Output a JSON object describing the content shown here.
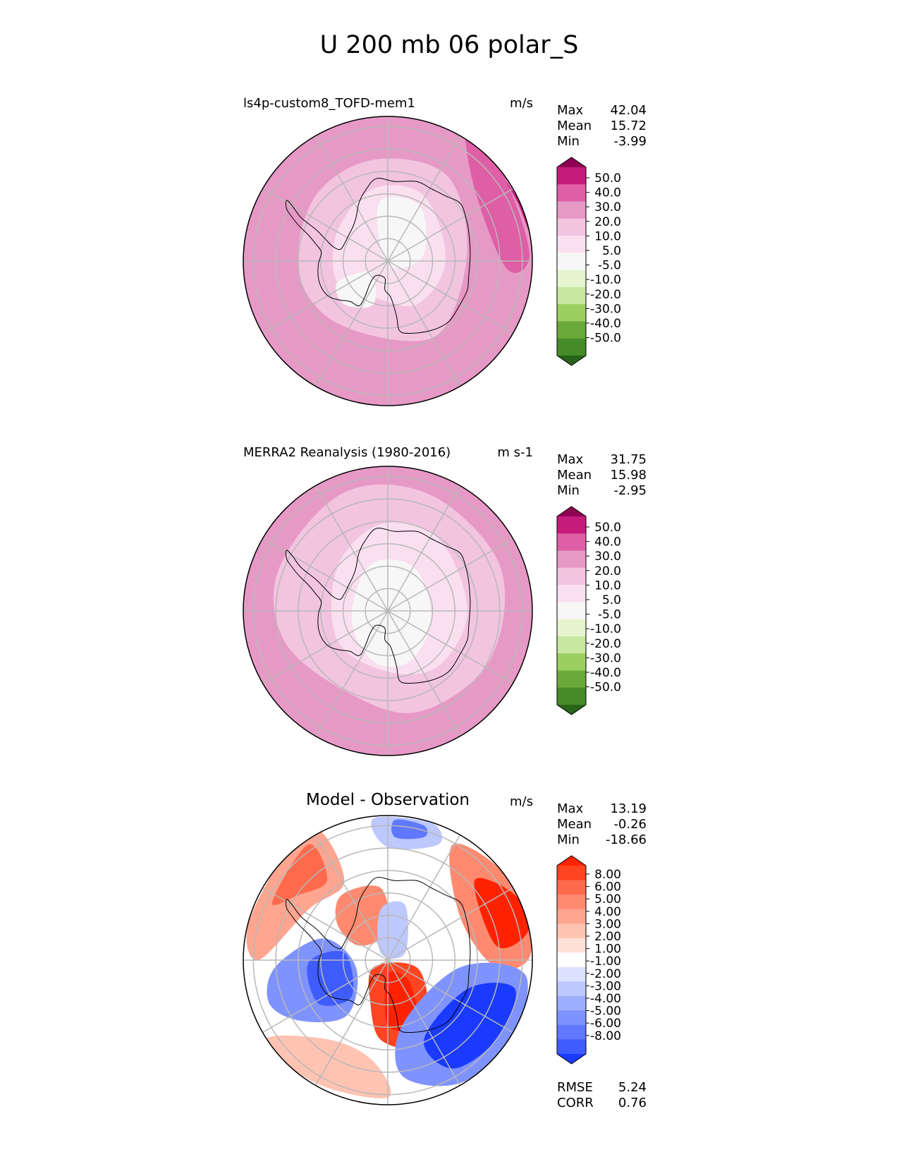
{
  "title": "U 200 mb 06 polar_S",
  "chart_data": [
    {
      "type": "heatmap",
      "projection": "south-polar-stereographic",
      "title": "ls4p-custom8_TOFD-mem1",
      "units": "m/s",
      "stats": {
        "max_label": "Max",
        "max": "42.04",
        "mean_label": "Mean",
        "mean": "15.72",
        "min_label": "Min",
        "min": "-3.99"
      },
      "levels": [
        "50.0",
        "40.0",
        "30.0",
        "20.0",
        "10.0",
        "5.0",
        "-5.0",
        "-10.0",
        "-20.0",
        "-30.0",
        "-40.0",
        "-50.0"
      ],
      "colors": [
        "#8e0152",
        "#c51b7d",
        "#de5fa6",
        "#e799c6",
        "#f2c4e0",
        "#fae0ef",
        "#f7f7f7",
        "#e6f5d0",
        "#c7e8a0",
        "#9bcf60",
        "#6aa937",
        "#458c28",
        "#276419"
      ],
      "background": "#e799c6",
      "fields": [
        {
          "color": "#f2c4e0",
          "points": [
            [
              -0.5,
              0.45
            ],
            [
              -0.1,
              0.7
            ],
            [
              0.4,
              0.6
            ],
            [
              0.55,
              0.1
            ],
            [
              0.4,
              -0.45
            ],
            [
              0.1,
              -0.55
            ],
            [
              -0.4,
              -0.4
            ],
            [
              -0.62,
              -0.05
            ]
          ]
        },
        {
          "color": "#fae0ef",
          "points": [
            [
              -0.35,
              0.2
            ],
            [
              -0.1,
              0.5
            ],
            [
              0.25,
              0.45
            ],
            [
              0.4,
              0.0
            ],
            [
              0.2,
              -0.3
            ],
            [
              -0.1,
              -0.25
            ],
            [
              -0.35,
              -0.15
            ]
          ]
        },
        {
          "color": "#f7f7f7",
          "points": [
            [
              -0.05,
              0.42
            ],
            [
              0.22,
              0.38
            ],
            [
              0.25,
              0.05
            ],
            [
              0.05,
              -0.05
            ],
            [
              -0.05,
              0.1
            ]
          ]
        },
        {
          "color": "#f7f7f7",
          "points": [
            [
              -0.35,
              -0.15
            ],
            [
              -0.12,
              -0.08
            ],
            [
              -0.1,
              -0.3
            ],
            [
              -0.3,
              -0.3
            ]
          ]
        },
        {
          "color": "#de5fa6",
          "points": [
            [
              0.55,
              0.92
            ],
            [
              0.8,
              0.6
            ],
            [
              0.98,
              0.05
            ],
            [
              0.82,
              -0.05
            ],
            [
              0.6,
              0.5
            ]
          ]
        },
        {
          "color": "#c51b7d",
          "points": [
            [
              0.82,
              0.55
            ],
            [
              0.95,
              0.35
            ],
            [
              0.98,
              0.2
            ],
            [
              0.9,
              0.4
            ]
          ]
        }
      ]
    },
    {
      "type": "heatmap",
      "projection": "south-polar-stereographic",
      "title": "MERRA2 Reanalysis (1980-2016)",
      "units": "m s-1",
      "stats": {
        "max_label": "Max",
        "max": "31.75",
        "mean_label": "Mean",
        "mean": "15.98",
        "min_label": "Min",
        "min": "-2.95"
      },
      "levels": [
        "50.0",
        "40.0",
        "30.0",
        "20.0",
        "10.0",
        "5.0",
        "-5.0",
        "-10.0",
        "-20.0",
        "-30.0",
        "-40.0",
        "-50.0"
      ],
      "colors": [
        "#8e0152",
        "#c51b7d",
        "#de5fa6",
        "#e799c6",
        "#f2c4e0",
        "#fae0ef",
        "#f7f7f7",
        "#e6f5d0",
        "#c7e8a0",
        "#9bcf60",
        "#6aa937",
        "#458c28",
        "#276419"
      ],
      "background": "#e799c6",
      "fields": [
        {
          "color": "#f2c4e0",
          "points": [
            [
              -0.75,
              0.3
            ],
            [
              -0.3,
              0.82
            ],
            [
              0.3,
              0.8
            ],
            [
              0.78,
              0.3
            ],
            [
              0.7,
              -0.35
            ],
            [
              0.2,
              -0.7
            ],
            [
              -0.3,
              -0.55
            ],
            [
              -0.72,
              -0.2
            ]
          ]
        },
        {
          "color": "#fae0ef",
          "points": [
            [
              -0.35,
              0.3
            ],
            [
              -0.05,
              0.6
            ],
            [
              0.35,
              0.5
            ],
            [
              0.55,
              0.0
            ],
            [
              0.35,
              -0.38
            ],
            [
              0.0,
              -0.42
            ],
            [
              -0.35,
              -0.2
            ]
          ]
        },
        {
          "color": "#f7f7f7",
          "points": [
            [
              -0.12,
              0.32
            ],
            [
              0.18,
              0.3
            ],
            [
              0.3,
              -0.05
            ],
            [
              0.15,
              -0.35
            ],
            [
              -0.1,
              -0.35
            ],
            [
              -0.25,
              -0.05
            ]
          ]
        }
      ]
    },
    {
      "type": "heatmap",
      "projection": "south-polar-stereographic",
      "title": "Model - Observation",
      "units": "m/s",
      "stats": {
        "max_label": "Max",
        "max": "13.19",
        "mean_label": "Mean",
        "mean": "-0.26",
        "min_label": "Min",
        "min": "-18.66"
      },
      "levels": [
        "8.00",
        "6.00",
        "5.00",
        "4.00",
        "3.00",
        "2.00",
        "1.00",
        "-1.00",
        "-2.00",
        "-3.00",
        "-4.00",
        "-5.00",
        "-6.00",
        "-8.00"
      ],
      "colors": [
        "#ff2200",
        "#ff4422",
        "#ff6a4d",
        "#ff8a70",
        "#ffa590",
        "#ffc3b2",
        "#ffe0d6",
        "#ffffff",
        "#dce2ff",
        "#bdc8ff",
        "#9eaeff",
        "#7f93ff",
        "#5f78ff",
        "#3f5cff",
        "#1a3aff"
      ],
      "background": "#ffffff",
      "fields": [
        {
          "color": "#ffa590",
          "points": [
            [
              -0.95,
              0.3
            ],
            [
              -0.55,
              0.92
            ],
            [
              -0.3,
              0.55
            ],
            [
              -0.55,
              0.35
            ],
            [
              -0.9,
              0.0
            ]
          ]
        },
        {
          "color": "#ff6a4d",
          "points": [
            [
              -0.8,
              0.4
            ],
            [
              -0.55,
              0.8
            ],
            [
              -0.42,
              0.55
            ],
            [
              -0.62,
              0.45
            ]
          ]
        },
        {
          "color": "#ff8a70",
          "points": [
            [
              0.45,
              0.8
            ],
            [
              0.85,
              0.55
            ],
            [
              0.99,
              0.05
            ],
            [
              0.75,
              -0.05
            ],
            [
              0.5,
              0.3
            ]
          ]
        },
        {
          "color": "#ff2200",
          "points": [
            [
              0.6,
              0.55
            ],
            [
              0.88,
              0.45
            ],
            [
              0.97,
              0.2
            ],
            [
              0.75,
              0.1
            ]
          ]
        },
        {
          "color": "#ff8a70",
          "points": [
            [
              -0.32,
              0.45
            ],
            [
              -0.05,
              0.5
            ],
            [
              0.0,
              0.2
            ],
            [
              -0.2,
              0.1
            ],
            [
              -0.35,
              0.25
            ]
          ]
        },
        {
          "color": "#ff4422",
          "points": [
            [
              -0.1,
              -0.05
            ],
            [
              0.2,
              -0.05
            ],
            [
              0.28,
              -0.35
            ],
            [
              0.2,
              -0.6
            ],
            [
              -0.05,
              -0.55
            ],
            [
              -0.12,
              -0.3
            ]
          ]
        },
        {
          "color": "#ff2200",
          "points": [
            [
              0.0,
              -0.1
            ],
            [
              0.15,
              -0.15
            ],
            [
              0.2,
              -0.45
            ],
            [
              0.0,
              -0.45
            ]
          ]
        },
        {
          "color": "#ffc3b2",
          "points": [
            [
              -0.85,
              -0.55
            ],
            [
              -0.4,
              -0.55
            ],
            [
              -0.1,
              -0.7
            ],
            [
              0.0,
              -0.95
            ],
            [
              -0.5,
              -0.85
            ]
          ]
        },
        {
          "color": "#7f93ff",
          "points": [
            [
              -0.78,
              -0.05
            ],
            [
              -0.45,
              0.15
            ],
            [
              -0.22,
              -0.05
            ],
            [
              -0.28,
              -0.38
            ],
            [
              -0.6,
              -0.42
            ],
            [
              -0.82,
              -0.3
            ]
          ]
        },
        {
          "color": "#3f5cff",
          "points": [
            [
              -0.55,
              -0.02
            ],
            [
              -0.3,
              0.05
            ],
            [
              -0.25,
              -0.25
            ],
            [
              -0.48,
              -0.3
            ]
          ]
        },
        {
          "color": "#bdc8ff",
          "points": [
            [
              -0.1,
              0.98
            ],
            [
              0.3,
              0.95
            ],
            [
              0.35,
              0.8
            ],
            [
              0.0,
              0.78
            ]
          ]
        },
        {
          "color": "#5f78ff",
          "points": [
            [
              0.05,
              0.97
            ],
            [
              0.25,
              0.93
            ],
            [
              0.25,
              0.85
            ],
            [
              0.05,
              0.85
            ]
          ]
        },
        {
          "color": "#bdc8ff",
          "points": [
            [
              -0.05,
              0.35
            ],
            [
              0.12,
              0.38
            ],
            [
              0.12,
              0.05
            ],
            [
              -0.05,
              0.05
            ]
          ]
        },
        {
          "color": "#7f93ff",
          "points": [
            [
              0.1,
              -0.45
            ],
            [
              0.5,
              -0.05
            ],
            [
              0.95,
              -0.1
            ],
            [
              0.85,
              -0.55
            ],
            [
              0.5,
              -0.85
            ],
            [
              0.1,
              -0.8
            ]
          ]
        },
        {
          "color": "#1a3aff",
          "points": [
            [
              0.25,
              -0.55
            ],
            [
              0.55,
              -0.2
            ],
            [
              0.88,
              -0.2
            ],
            [
              0.75,
              -0.55
            ],
            [
              0.45,
              -0.75
            ]
          ]
        }
      ],
      "error_stats": {
        "rmse_label": "RMSE",
        "rmse": "5.24",
        "corr_label": "CORR",
        "corr": "0.76"
      }
    }
  ]
}
